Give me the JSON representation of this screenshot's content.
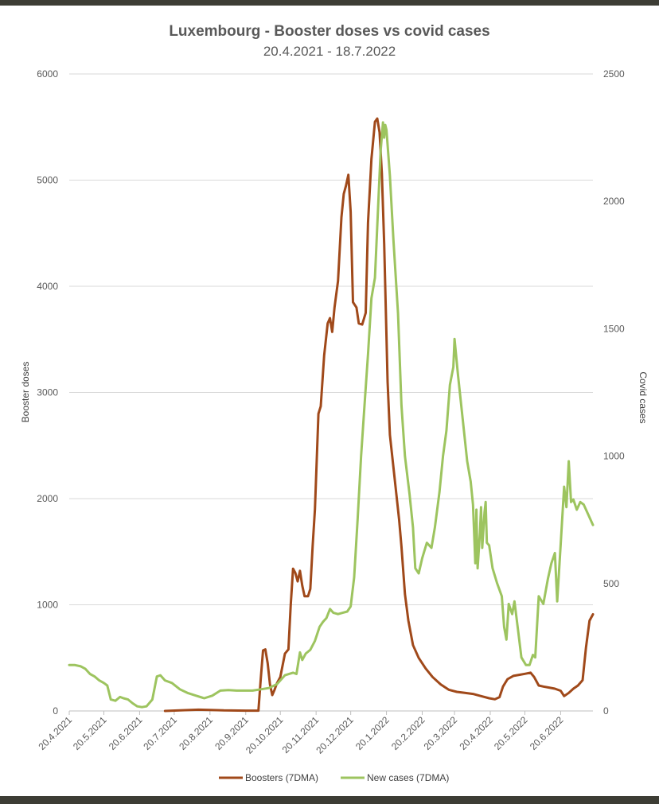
{
  "chart_data": {
    "type": "line",
    "title": "Luxembourg - Booster doses vs covid cases",
    "subtitle": "20.4.2021 - 18.7.2022",
    "ylabel_left": "Booster doses",
    "ylabel_right": "Covid cases",
    "ylim_left": [
      0,
      6000
    ],
    "ylim_right": [
      0,
      2500
    ],
    "yticks_left": [
      0,
      1000,
      2000,
      3000,
      4000,
      5000,
      6000
    ],
    "yticks_right": [
      0,
      500,
      1000,
      1500,
      2000,
      2500
    ],
    "x_start": "2021-04-20",
    "x_end": "2022-07-18",
    "xticks": [
      "20.4.2021",
      "20.5.2021",
      "20.6.2021",
      "20.7.2021",
      "20.8.2021",
      "20.9.2021",
      "20.10.2021",
      "20.11.2021",
      "20.12.2021",
      "20.1.2022",
      "20.2.2022",
      "20.3.2022",
      "20.4.2022",
      "20.5.2022",
      "20.6.2022"
    ],
    "xtick_dates": [
      "2021-04-20",
      "2021-05-20",
      "2021-06-20",
      "2021-07-20",
      "2021-08-20",
      "2021-09-20",
      "2021-10-20",
      "2021-11-20",
      "2021-12-20",
      "2022-01-20",
      "2022-02-20",
      "2022-03-20",
      "2022-04-20",
      "2022-05-20",
      "2022-06-20"
    ],
    "grid": true,
    "legend": "bottom",
    "series": [
      {
        "name": "Boosters (7DMA)",
        "axis": "left",
        "color": "#a0491a",
        "points": [
          [
            "2021-07-12",
            0
          ],
          [
            "2021-07-25",
            5
          ],
          [
            "2021-08-10",
            12
          ],
          [
            "2021-08-20",
            10
          ],
          [
            "2021-09-01",
            5
          ],
          [
            "2021-09-20",
            3
          ],
          [
            "2021-10-01",
            3
          ],
          [
            "2021-10-03",
            300
          ],
          [
            "2021-10-05",
            570
          ],
          [
            "2021-10-07",
            580
          ],
          [
            "2021-10-09",
            450
          ],
          [
            "2021-10-11",
            250
          ],
          [
            "2021-10-13",
            150
          ],
          [
            "2021-10-15",
            200
          ],
          [
            "2021-10-17",
            260
          ],
          [
            "2021-10-20",
            320
          ],
          [
            "2021-10-24",
            540
          ],
          [
            "2021-10-27",
            580
          ],
          [
            "2021-10-29",
            1000
          ],
          [
            "2021-10-31",
            1340
          ],
          [
            "2021-11-02",
            1300
          ],
          [
            "2021-11-04",
            1220
          ],
          [
            "2021-11-06",
            1320
          ],
          [
            "2021-11-08",
            1180
          ],
          [
            "2021-11-10",
            1080
          ],
          [
            "2021-11-13",
            1080
          ],
          [
            "2021-11-15",
            1150
          ],
          [
            "2021-11-17",
            1550
          ],
          [
            "2021-11-19",
            1900
          ],
          [
            "2021-11-22",
            2800
          ],
          [
            "2021-11-24",
            2870
          ],
          [
            "2021-11-27",
            3350
          ],
          [
            "2021-11-30",
            3650
          ],
          [
            "2021-12-02",
            3700
          ],
          [
            "2021-12-04",
            3570
          ],
          [
            "2021-12-06",
            3800
          ],
          [
            "2021-12-09",
            4050
          ],
          [
            "2021-12-12",
            4650
          ],
          [
            "2021-12-14",
            4870
          ],
          [
            "2021-12-16",
            4950
          ],
          [
            "2021-12-18",
            5050
          ],
          [
            "2021-12-20",
            4700
          ],
          [
            "2021-12-22",
            3850
          ],
          [
            "2021-12-25",
            3800
          ],
          [
            "2021-12-27",
            3650
          ],
          [
            "2021-12-30",
            3640
          ],
          [
            "2022-01-02",
            3750
          ],
          [
            "2022-01-04",
            4600
          ],
          [
            "2022-01-07",
            5200
          ],
          [
            "2022-01-10",
            5550
          ],
          [
            "2022-01-12",
            5580
          ],
          [
            "2022-01-14",
            5450
          ],
          [
            "2022-01-16",
            5060
          ],
          [
            "2022-01-18",
            4400
          ],
          [
            "2022-01-21",
            3100
          ],
          [
            "2022-01-23",
            2600
          ],
          [
            "2022-01-27",
            2200
          ],
          [
            "2022-01-31",
            1800
          ],
          [
            "2022-02-02",
            1550
          ],
          [
            "2022-02-05",
            1100
          ],
          [
            "2022-02-08",
            850
          ],
          [
            "2022-02-12",
            620
          ],
          [
            "2022-02-17",
            500
          ],
          [
            "2022-02-23",
            400
          ],
          [
            "2022-03-01",
            320
          ],
          [
            "2022-03-08",
            250
          ],
          [
            "2022-03-15",
            200
          ],
          [
            "2022-03-22",
            180
          ],
          [
            "2022-03-29",
            170
          ],
          [
            "2022-04-05",
            160
          ],
          [
            "2022-04-12",
            140
          ],
          [
            "2022-04-19",
            120
          ],
          [
            "2022-04-24",
            110
          ],
          [
            "2022-04-28",
            130
          ],
          [
            "2022-05-01",
            230
          ],
          [
            "2022-05-05",
            300
          ],
          [
            "2022-05-10",
            330
          ],
          [
            "2022-05-15",
            340
          ],
          [
            "2022-05-20",
            350
          ],
          [
            "2022-05-25",
            360
          ],
          [
            "2022-05-28",
            320
          ],
          [
            "2022-06-01",
            240
          ],
          [
            "2022-06-05",
            230
          ],
          [
            "2022-06-10",
            220
          ],
          [
            "2022-06-15",
            210
          ],
          [
            "2022-06-20",
            190
          ],
          [
            "2022-06-23",
            140
          ],
          [
            "2022-06-27",
            170
          ],
          [
            "2022-07-01",
            210
          ],
          [
            "2022-07-05",
            240
          ],
          [
            "2022-07-09",
            290
          ],
          [
            "2022-07-12",
            600
          ],
          [
            "2022-07-15",
            850
          ],
          [
            "2022-07-18",
            910
          ]
        ]
      },
      {
        "name": "New cases (7DMA)",
        "axis": "right",
        "color": "#9dc45f",
        "points": [
          [
            "2021-04-20",
            180
          ],
          [
            "2021-04-25",
            180
          ],
          [
            "2021-04-30",
            175
          ],
          [
            "2021-05-04",
            165
          ],
          [
            "2021-05-08",
            145
          ],
          [
            "2021-05-12",
            135
          ],
          [
            "2021-05-16",
            120
          ],
          [
            "2021-05-20",
            110
          ],
          [
            "2021-05-23",
            100
          ],
          [
            "2021-05-26",
            45
          ],
          [
            "2021-05-30",
            40
          ],
          [
            "2021-06-03",
            55
          ],
          [
            "2021-06-06",
            50
          ],
          [
            "2021-06-10",
            45
          ],
          [
            "2021-06-14",
            30
          ],
          [
            "2021-06-18",
            18
          ],
          [
            "2021-06-22",
            15
          ],
          [
            "2021-06-26",
            18
          ],
          [
            "2021-07-01",
            45
          ],
          [
            "2021-07-05",
            135
          ],
          [
            "2021-07-08",
            140
          ],
          [
            "2021-07-12",
            120
          ],
          [
            "2021-07-18",
            110
          ],
          [
            "2021-07-25",
            85
          ],
          [
            "2021-08-01",
            70
          ],
          [
            "2021-08-08",
            60
          ],
          [
            "2021-08-15",
            50
          ],
          [
            "2021-08-22",
            60
          ],
          [
            "2021-08-29",
            80
          ],
          [
            "2021-09-05",
            82
          ],
          [
            "2021-09-12",
            80
          ],
          [
            "2021-09-19",
            80
          ],
          [
            "2021-09-26",
            80
          ],
          [
            "2021-10-03",
            85
          ],
          [
            "2021-10-10",
            90
          ],
          [
            "2021-10-17",
            105
          ],
          [
            "2021-10-24",
            140
          ],
          [
            "2021-10-31",
            150
          ],
          [
            "2021-11-03",
            145
          ],
          [
            "2021-11-06",
            230
          ],
          [
            "2021-11-08",
            200
          ],
          [
            "2021-11-11",
            225
          ],
          [
            "2021-11-15",
            240
          ],
          [
            "2021-11-19",
            275
          ],
          [
            "2021-11-23",
            330
          ],
          [
            "2021-11-26",
            350
          ],
          [
            "2021-11-29",
            365
          ],
          [
            "2021-12-02",
            400
          ],
          [
            "2021-12-05",
            385
          ],
          [
            "2021-12-09",
            380
          ],
          [
            "2021-12-13",
            385
          ],
          [
            "2021-12-17",
            390
          ],
          [
            "2021-12-20",
            410
          ],
          [
            "2021-12-23",
            525
          ],
          [
            "2021-12-26",
            750
          ],
          [
            "2021-12-29",
            1000
          ],
          [
            "2022-01-01",
            1200
          ],
          [
            "2022-01-04",
            1400
          ],
          [
            "2022-01-07",
            1620
          ],
          [
            "2022-01-10",
            1700
          ],
          [
            "2022-01-13",
            2000
          ],
          [
            "2022-01-15",
            2200
          ],
          [
            "2022-01-17",
            2310
          ],
          [
            "2022-01-18",
            2250
          ],
          [
            "2022-01-19",
            2300
          ],
          [
            "2022-01-20",
            2280
          ],
          [
            "2022-01-23",
            2100
          ],
          [
            "2022-01-26",
            1850
          ],
          [
            "2022-01-30",
            1560
          ],
          [
            "2022-02-02",
            1200
          ],
          [
            "2022-02-05",
            1000
          ],
          [
            "2022-02-09",
            850
          ],
          [
            "2022-02-12",
            720
          ],
          [
            "2022-02-14",
            560
          ],
          [
            "2022-02-17",
            540
          ],
          [
            "2022-02-20",
            600
          ],
          [
            "2022-02-24",
            660
          ],
          [
            "2022-02-28",
            640
          ],
          [
            "2022-03-03",
            720
          ],
          [
            "2022-03-07",
            860
          ],
          [
            "2022-03-10",
            1000
          ],
          [
            "2022-03-13",
            1100
          ],
          [
            "2022-03-16",
            1280
          ],
          [
            "2022-03-19",
            1350
          ],
          [
            "2022-03-20",
            1460
          ],
          [
            "2022-03-23",
            1320
          ],
          [
            "2022-03-27",
            1150
          ],
          [
            "2022-03-31",
            980
          ],
          [
            "2022-04-03",
            900
          ],
          [
            "2022-04-05",
            810
          ],
          [
            "2022-04-06",
            700
          ],
          [
            "2022-04-07",
            580
          ],
          [
            "2022-04-08",
            790
          ],
          [
            "2022-04-09",
            560
          ],
          [
            "2022-04-11",
            700
          ],
          [
            "2022-04-12",
            800
          ],
          [
            "2022-04-13",
            640
          ],
          [
            "2022-04-15",
            780
          ],
          [
            "2022-04-16",
            820
          ],
          [
            "2022-04-17",
            660
          ],
          [
            "2022-04-19",
            650
          ],
          [
            "2022-04-22",
            560
          ],
          [
            "2022-04-26",
            500
          ],
          [
            "2022-04-30",
            450
          ],
          [
            "2022-05-02",
            330
          ],
          [
            "2022-05-04",
            280
          ],
          [
            "2022-05-06",
            420
          ],
          [
            "2022-05-09",
            380
          ],
          [
            "2022-05-11",
            430
          ],
          [
            "2022-05-14",
            320
          ],
          [
            "2022-05-17",
            210
          ],
          [
            "2022-05-21",
            180
          ],
          [
            "2022-05-24",
            180
          ],
          [
            "2022-05-27",
            220
          ],
          [
            "2022-05-29",
            210
          ],
          [
            "2022-06-01",
            450
          ],
          [
            "2022-06-05",
            420
          ],
          [
            "2022-06-09",
            520
          ],
          [
            "2022-06-12",
            580
          ],
          [
            "2022-06-15",
            620
          ],
          [
            "2022-06-17",
            430
          ],
          [
            "2022-06-20",
            650
          ],
          [
            "2022-06-23",
            880
          ],
          [
            "2022-06-25",
            800
          ],
          [
            "2022-06-27",
            980
          ],
          [
            "2022-06-29",
            820
          ],
          [
            "2022-07-01",
            830
          ],
          [
            "2022-07-04",
            790
          ],
          [
            "2022-07-07",
            820
          ],
          [
            "2022-07-10",
            810
          ],
          [
            "2022-07-14",
            770
          ],
          [
            "2022-07-18",
            730
          ]
        ]
      }
    ]
  }
}
